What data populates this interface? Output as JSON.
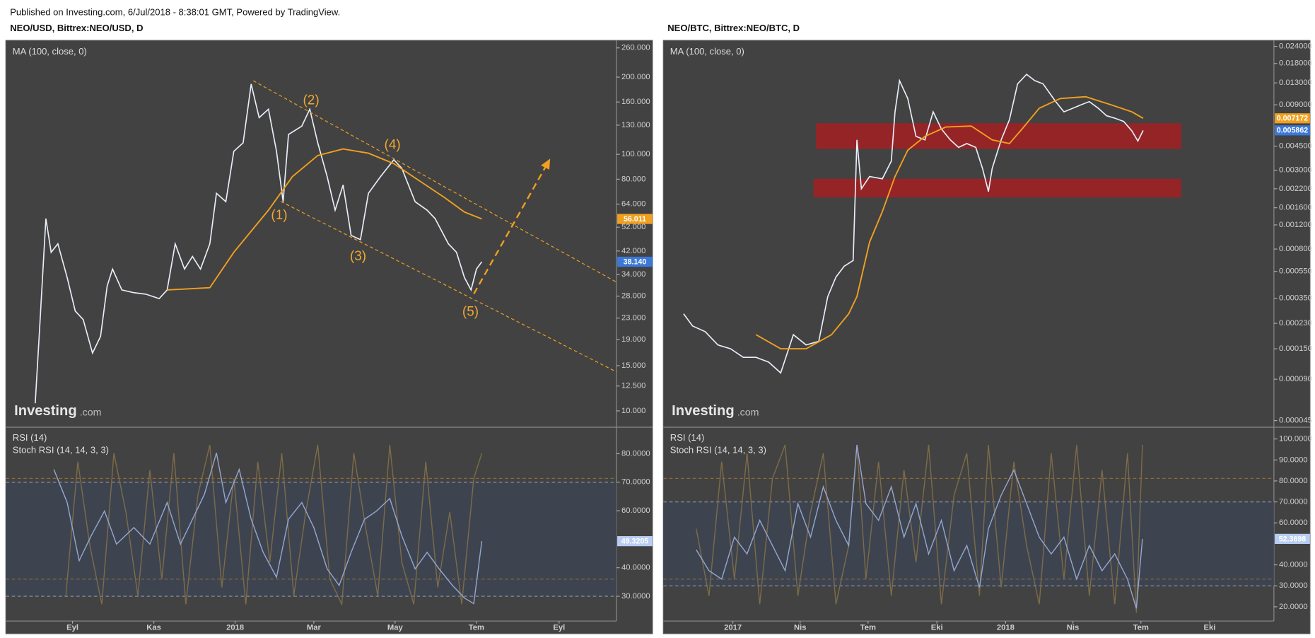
{
  "header": {
    "published": "Published on Investing.com, 6/Jul/2018 - 8:38:01 GMT, Powered by TradingView."
  },
  "chart_data": [
    {
      "type": "line",
      "title": "NEO/USD, Bittrex:NEO/USD, D",
      "indicator": "MA (100, close, 0)",
      "log_scale": true,
      "watermark": [
        "Investing",
        ".com"
      ],
      "xlim": [
        -50,
        408
      ],
      "xticks": [
        {
          "value": 0,
          "label": "Eyl"
        },
        {
          "value": 61,
          "label": "Kas"
        },
        {
          "value": 122,
          "label": "2018"
        },
        {
          "value": 181,
          "label": "Mar"
        },
        {
          "value": 242,
          "label": "May"
        },
        {
          "value": 303,
          "label": "Tem"
        },
        {
          "value": 365,
          "label": "Eyl"
        }
      ],
      "ylim": [
        8.7,
        278
      ],
      "yticks": [
        {
          "value": 260,
          "label": "260.000"
        },
        {
          "value": 200,
          "label": "200.000"
        },
        {
          "value": 160,
          "label": "160.000"
        },
        {
          "value": 130,
          "label": "130.000"
        },
        {
          "value": 100,
          "label": "100.000"
        },
        {
          "value": 80,
          "label": "80.000"
        },
        {
          "value": 64,
          "label": "64.000"
        },
        {
          "value": 52,
          "label": "52.000"
        },
        {
          "value": 42,
          "label": "42.000"
        },
        {
          "value": 34,
          "label": "34.000"
        },
        {
          "value": 28,
          "label": "28.000"
        },
        {
          "value": 23,
          "label": "23.000"
        },
        {
          "value": 19,
          "label": "19.000"
        },
        {
          "value": 15,
          "label": "15.000"
        },
        {
          "value": 12.5,
          "label": "12.500"
        },
        {
          "value": 10,
          "label": "10.000"
        }
      ],
      "series": [
        {
          "color": "#e8eef8",
          "label_color": "#3b78d8",
          "label": "38.140",
          "x": [
            -28,
            -25,
            -20,
            -16,
            -11,
            -4,
            2,
            8,
            15,
            21,
            26,
            30,
            37,
            46,
            55,
            65,
            71,
            77,
            84,
            90,
            96,
            103,
            108,
            115,
            121,
            128,
            134,
            140,
            147,
            153,
            158,
            162,
            172,
            178,
            184,
            191,
            197,
            203,
            209,
            216,
            222,
            231,
            241,
            247,
            257,
            266,
            272,
            282,
            288,
            294,
            299,
            303,
            307
          ],
          "values": [
            10.7,
            19.5,
            56.2,
            41.5,
            44.8,
            33.1,
            24.5,
            22.7,
            16.8,
            19.5,
            30.7,
            35.7,
            29.6,
            28.9,
            28.5,
            27.4,
            29.6,
            44.8,
            35.7,
            40.0,
            35.7,
            44.8,
            70.5,
            65.4,
            102.8,
            110.8,
            187.9,
            139,
            150,
            102.8,
            65.4,
            119.5,
            128.9,
            150,
            110.8,
            81.9,
            60.6,
            76,
            48.3,
            46.5,
            70.5,
            81.9,
            95.3,
            88.3,
            65.4,
            60.6,
            56.2,
            44.8,
            41.5,
            33.1,
            29.6,
            35.7,
            38.14
          ]
        },
        {
          "color": "#f0a020",
          "label_color": "#f0a020",
          "label": "56.011",
          "x": [
            71,
            103,
            121,
            147,
            165,
            184,
            203,
            222,
            241,
            260,
            279,
            294,
            307
          ],
          "values": [
            29.6,
            30.2,
            41.5,
            60.6,
            81.9,
            99,
            105,
            101,
            92,
            79,
            67.9,
            59.6,
            56.011
          ]
        }
      ],
      "annotations": [
        "(1)",
        "(2)",
        "(3)",
        "(4)",
        "(5)"
      ],
      "oscillator": {
        "titles": [
          "RSI (14)",
          "Stoch RSI (14, 14, 3, 3)"
        ],
        "ylim": [
          21.3,
          89
        ],
        "yticks": [
          {
            "value": 80,
            "label": "80.0000"
          },
          {
            "value": 70,
            "label": "70.0000"
          },
          {
            "value": 60,
            "label": "60.0000"
          },
          {
            "value": 40,
            "label": "40.0000"
          },
          {
            "value": 30,
            "label": "30.0000"
          }
        ],
        "levels": [
          70,
          30
        ],
        "band_color": "#3d4450",
        "y2lim": [
          -5,
          110
        ],
        "stoch_levels": [
          80,
          20
        ],
        "series": [
          {
            "color": "#94a6d0",
            "label_color": "#b9cdf2",
            "label": "49.3205",
            "x": [
              -14,
              -4,
              5,
              14,
              24,
              33,
              46,
              58,
              71,
              81,
              90,
              99,
              108,
              115,
              125,
              134,
              143,
              153,
              162,
              172,
              181,
              191,
              200,
              209,
              219,
              228,
              238,
              247,
              257,
              266,
              275,
              285,
              294,
              301,
              307
            ],
            "values": [
              74.5,
              62.9,
              42.5,
              51.2,
              59.9,
              48.3,
              54.1,
              48.3,
              62.9,
              48.3,
              57.0,
              65.8,
              80.3,
              62.9,
              74.5,
              57.0,
              45.4,
              36.7,
              57.0,
              62.9,
              54.1,
              39.6,
              33.8,
              45.4,
              57.0,
              59.9,
              64.3,
              51.2,
              39.6,
              45.4,
              39.6,
              33.8,
              29.4,
              27.4,
              49.3205
            ]
          },
          {
            "color": "#7d6b48",
            "axis": "y2",
            "x": [
              -5,
              4,
              13,
              22,
              31,
              40,
              49,
              58,
              67,
              76,
              85,
              94,
              103,
              112,
              121,
              130,
              139,
              148,
              157,
              166,
              175,
              184,
              193,
              202,
              211,
              220,
              229,
              238,
              247,
              256,
              265,
              274,
              283,
              292,
              301,
              307
            ],
            "values": [
              10,
              90,
              40,
              5,
              95,
              60,
              10,
              85,
              20,
              95,
              5,
              70,
              100,
              15,
              80,
              5,
              90,
              30,
              95,
              10,
              60,
              100,
              20,
              5,
              95,
              50,
              10,
              100,
              30,
              5,
              90,
              15,
              60,
              5,
              80,
              95
            ]
          }
        ]
      }
    },
    {
      "type": "line",
      "title": "NEO/BTC, Bittrex:NEO/BTC, D",
      "indicator": "MA (100, close, 0)",
      "log_scale": true,
      "watermark": [
        "Investing",
        ".com"
      ],
      "xlim": [
        -93,
        724
      ],
      "xticks": [
        {
          "value": 0,
          "label": "2017"
        },
        {
          "value": 90,
          "label": "Nis"
        },
        {
          "value": 181,
          "label": "Tem"
        },
        {
          "value": 273,
          "label": "Eki"
        },
        {
          "value": 365,
          "label": "2018"
        },
        {
          "value": 455,
          "label": "Nis"
        },
        {
          "value": 546,
          "label": "Tem"
        },
        {
          "value": 638,
          "label": "Eki"
        }
      ],
      "ylim": [
        4.08e-05,
        0.0265
      ],
      "yticks": [
        {
          "value": 0.024,
          "label": "0.024000"
        },
        {
          "value": 0.018,
          "label": "0.018000"
        },
        {
          "value": 0.013,
          "label": "0.013000"
        },
        {
          "value": 0.009,
          "label": "0.009000"
        },
        {
          "value": 0.0045,
          "label": "0.004500"
        },
        {
          "value": 0.003,
          "label": "0.003000"
        },
        {
          "value": 0.0022,
          "label": "0.002200"
        },
        {
          "value": 0.0016,
          "label": "0.001600"
        },
        {
          "value": 0.0012,
          "label": "0.001200"
        },
        {
          "value": 0.0008,
          "label": "0.000800"
        },
        {
          "value": 0.00055,
          "label": "0.000550"
        },
        {
          "value": 0.00035,
          "label": "0.000350"
        },
        {
          "value": 0.00023,
          "label": "0.000230"
        },
        {
          "value": 0.00015,
          "label": "0.000150"
        },
        {
          "value": 9e-05,
          "label": "0.000090"
        },
        {
          "value": 4.5e-05,
          "label": "0.000045"
        }
      ],
      "zones": [
        {
          "x": [
            111,
            600
          ],
          "y": [
            0.0043,
            0.0066
          ],
          "color": "#a31e22"
        },
        {
          "x": [
            108,
            600
          ],
          "y": [
            0.0019,
            0.0026
          ],
          "color": "#a31e22"
        }
      ],
      "series": [
        {
          "color": "#e8eef8",
          "label_color": "#3b78d8",
          "label": "0.005862",
          "x": [
            -66,
            -54,
            -37,
            -20,
            -3,
            14,
            31,
            48,
            64,
            81,
            98,
            115,
            127,
            138,
            149,
            161,
            166,
            172,
            183,
            200,
            212,
            217,
            223,
            234,
            245,
            257,
            268,
            279,
            291,
            302,
            313,
            325,
            334,
            342,
            347,
            359,
            370,
            381,
            393,
            404,
            415,
            432,
            443,
            455,
            466,
            477,
            489,
            500,
            511,
            523,
            534,
            542,
            549
          ],
          "values": [
            0.00027,
            0.00022,
            0.0002,
            0.00016,
            0.00015,
            0.00013,
            0.00013,
            0.00012,
            0.0001,
            0.00019,
            0.00016,
            0.00017,
            0.00036,
            0.0005,
            0.0006,
            0.00066,
            0.005,
            0.0022,
            0.0027,
            0.0026,
            0.0035,
            0.008,
            0.0135,
            0.01,
            0.0053,
            0.005,
            0.008,
            0.006,
            0.005,
            0.0044,
            0.0047,
            0.0044,
            0.0031,
            0.0021,
            0.0031,
            0.005,
            0.007,
            0.0128,
            0.015,
            0.0135,
            0.0128,
            0.0095,
            0.008,
            0.0085,
            0.009,
            0.0095,
            0.0085,
            0.0075,
            0.0072,
            0.0068,
            0.0058,
            0.0049,
            0.005862
          ]
        },
        {
          "color": "#f0a020",
          "label_color": "#f0a020",
          "label": "0.007172",
          "x": [
            31,
            64,
            98,
            132,
            155,
            166,
            183,
            200,
            217,
            234,
            257,
            285,
            319,
            347,
            370,
            387,
            410,
            438,
            472,
            506,
            534,
            549
          ],
          "values": [
            0.00019,
            0.00015,
            0.00015,
            0.00019,
            0.00027,
            0.00036,
            0.0009,
            0.0015,
            0.0027,
            0.0042,
            0.0053,
            0.0062,
            0.0063,
            0.005,
            0.0047,
            0.006,
            0.0085,
            0.01,
            0.0103,
            0.009,
            0.008,
            0.007172
          ]
        }
      ],
      "oscillator": {
        "titles": [
          "RSI (14)",
          "Stoch RSI (14, 14, 3, 3)"
        ],
        "ylim": [
          13.2,
          105.2
        ],
        "yticks": [
          {
            "value": 100,
            "label": "100.0000"
          },
          {
            "value": 90,
            "label": "90.0000"
          },
          {
            "value": 80,
            "label": "80.0000"
          },
          {
            "value": 70,
            "label": "70.0000"
          },
          {
            "value": 60,
            "label": "60.0000"
          },
          {
            "value": 40,
            "label": "40.0000"
          },
          {
            "value": 30,
            "label": "30.0000"
          },
          {
            "value": 20,
            "label": "20.0000"
          }
        ],
        "levels": [
          70,
          30
        ],
        "band_color": "#3d4450",
        "y2lim": [
          -5,
          110
        ],
        "stoch_levels": [
          80,
          20
        ],
        "series": [
          {
            "color": "#94a6d0",
            "label_color": "#b9cdf2",
            "label": "52.3698",
            "x": [
              -49,
              -32,
              -15,
              2,
              19,
              36,
              53,
              70,
              87,
              104,
              121,
              138,
              155,
              166,
              178,
              195,
              212,
              229,
              245,
              262,
              279,
              296,
              313,
              330,
              342,
              359,
              376,
              393,
              410,
              426,
              443,
              460,
              477,
              494,
              511,
              528,
              540,
              548
            ],
            "values": [
              47.2,
              37.2,
              33.2,
              53.2,
              45.2,
              61.2,
              49.2,
              37.2,
              69.2,
              53.2,
              77.2,
              61.2,
              49.2,
              97.2,
              69.2,
              61.2,
              77.2,
              53.2,
              69.2,
              45.2,
              61.2,
              37.2,
              49.2,
              29.2,
              57.2,
              73.2,
              85.2,
              69.2,
              53.2,
              45.2,
              53.2,
              33.2,
              49.2,
              37.2,
              45.2,
              33.2,
              19.2,
              52.3698
            ]
          },
          {
            "color": "#7d6b48",
            "axis": "y2",
            "x": [
              -49,
              -32,
              -15,
              2,
              19,
              36,
              53,
              70,
              87,
              104,
              121,
              138,
              155,
              166,
              178,
              195,
              212,
              229,
              245,
              262,
              279,
              296,
              313,
              330,
              342,
              359,
              376,
              393,
              410,
              426,
              443,
              460,
              477,
              494,
              511,
              528,
              540,
              548
            ],
            "values": [
              50,
              10,
              90,
              20,
              95,
              5,
              80,
              100,
              10,
              60,
              95,
              5,
              40,
              100,
              20,
              90,
              10,
              85,
              30,
              100,
              5,
              70,
              95,
              10,
              100,
              15,
              90,
              40,
              5,
              95,
              20,
              100,
              10,
              85,
              5,
              95,
              0,
              100
            ]
          }
        ]
      }
    }
  ]
}
